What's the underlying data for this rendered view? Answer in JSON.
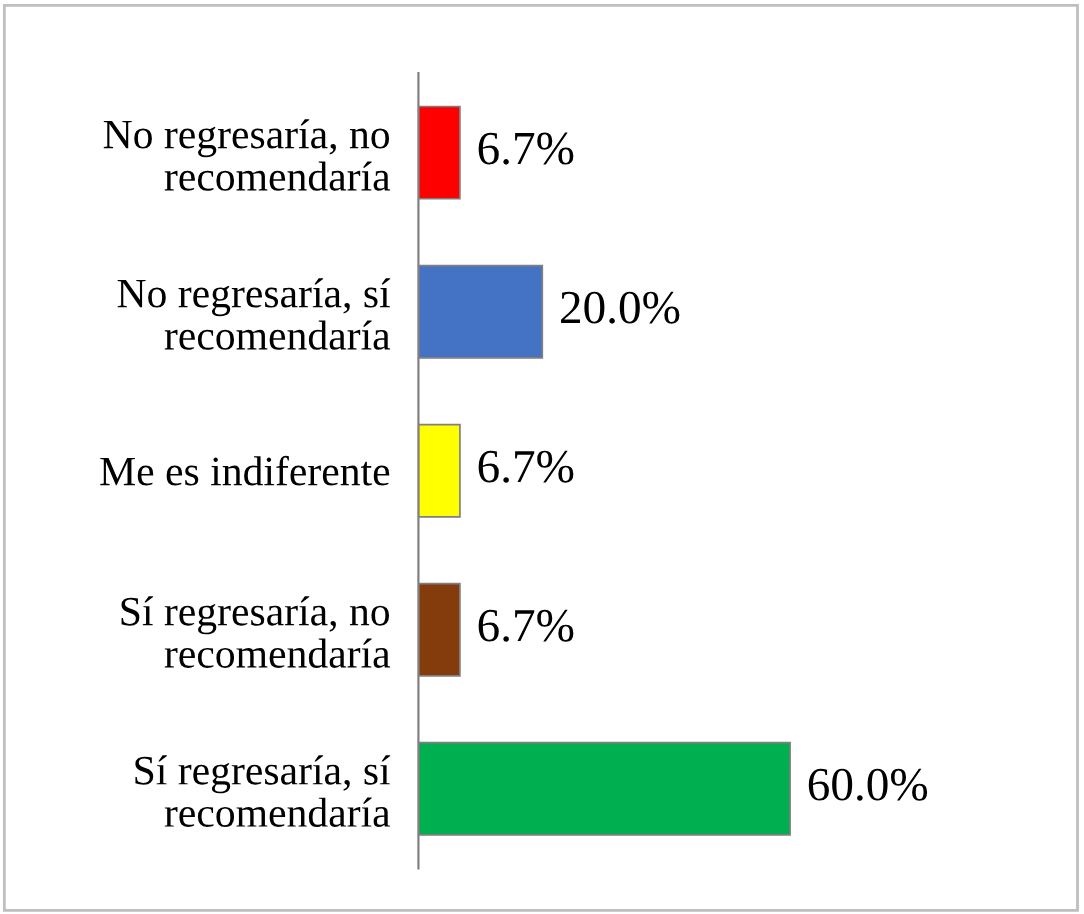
{
  "chart_data": {
    "type": "bar",
    "orientation": "horizontal",
    "categories": [
      "No regresaría, no\nrecomendaría",
      "No regresaría, sí\nrecomendaría",
      "Me es indiferente",
      "Sí regresaría, no\nrecomendaría",
      "Sí regresaría, sí\nrecomendaría"
    ],
    "values": [
      6.7,
      20.0,
      6.7,
      6.7,
      60.0
    ],
    "colors": [
      "#ff0000",
      "#4472c4",
      "#ffff00",
      "#843c0c",
      "#00b050"
    ],
    "value_labels": [
      "6.7%",
      "20.0%",
      "6.7%",
      "6.7%",
      "60.0%"
    ],
    "grid": false,
    "legend": false
  }
}
